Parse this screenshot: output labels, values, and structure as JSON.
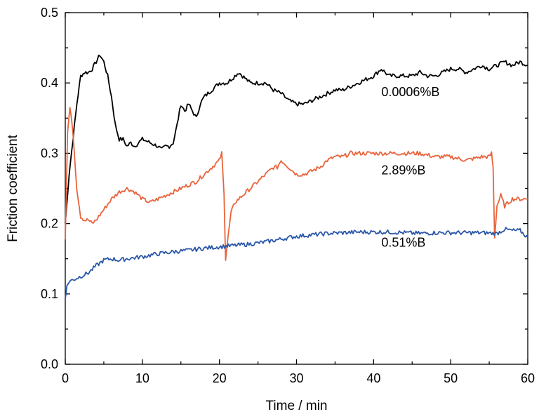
{
  "chart_data": {
    "type": "line",
    "xlabel": "Time / min",
    "ylabel": "Friction coefficient",
    "xlim": [
      0,
      60
    ],
    "ylim": [
      0,
      0.5
    ],
    "xticks": [
      0,
      10,
      20,
      30,
      40,
      50,
      60
    ],
    "yticks": [
      0.0,
      0.1,
      0.2,
      0.3,
      0.4,
      0.5
    ],
    "xtick_labels": [
      "0",
      "10",
      "20",
      "30",
      "40",
      "50",
      "60"
    ],
    "ytick_labels": [
      "0.0",
      "0.1",
      "0.2",
      "0.3",
      "0.4",
      "0.5"
    ],
    "grid": false,
    "legend": "none",
    "series": [
      {
        "name": "0.0006%B",
        "color": "#000000",
        "label_at": [
          41,
          0.381
        ],
        "x": [
          0,
          0.5,
          1,
          1.5,
          2,
          2.5,
          3,
          3.5,
          4,
          4.5,
          5,
          5.5,
          6,
          6.5,
          7,
          7.5,
          8,
          8.5,
          9,
          10,
          11,
          12,
          12.5,
          13,
          13.5,
          14,
          14.5,
          15,
          15.5,
          16,
          16.5,
          17,
          17.5,
          18,
          19,
          20,
          21,
          22,
          22.5,
          23,
          24,
          25,
          26,
          27,
          28,
          29,
          30,
          31,
          32,
          33,
          34,
          35,
          36,
          37,
          38,
          39,
          40,
          41,
          42,
          43,
          44,
          45,
          46,
          47,
          48,
          49,
          50,
          51,
          52,
          53,
          54,
          55,
          56,
          57,
          58,
          59,
          60
        ],
        "y": [
          0.2,
          0.27,
          0.32,
          0.37,
          0.41,
          0.415,
          0.415,
          0.42,
          0.43,
          0.44,
          0.43,
          0.41,
          0.38,
          0.34,
          0.32,
          0.32,
          0.31,
          0.315,
          0.31,
          0.32,
          0.315,
          0.31,
          0.305,
          0.31,
          0.31,
          0.315,
          0.34,
          0.37,
          0.36,
          0.37,
          0.36,
          0.35,
          0.37,
          0.38,
          0.39,
          0.4,
          0.4,
          0.41,
          0.415,
          0.41,
          0.4,
          0.4,
          0.4,
          0.39,
          0.385,
          0.375,
          0.37,
          0.37,
          0.375,
          0.38,
          0.385,
          0.39,
          0.39,
          0.395,
          0.4,
          0.405,
          0.41,
          0.42,
          0.41,
          0.41,
          0.41,
          0.41,
          0.415,
          0.41,
          0.41,
          0.415,
          0.42,
          0.42,
          0.415,
          0.42,
          0.425,
          0.42,
          0.425,
          0.43,
          0.425,
          0.43,
          0.425
        ]
      },
      {
        "name": "2.89%B",
        "color": "#e8643c",
        "label_at": [
          41,
          0.27
        ],
        "x": [
          0,
          0.3,
          0.6,
          1,
          1.5,
          2,
          2.5,
          3,
          3.5,
          4,
          5,
          6,
          7,
          8,
          9,
          10,
          11,
          12,
          13,
          14,
          15,
          16,
          17,
          18,
          19,
          20,
          20.3,
          20.6,
          20.8,
          21,
          21.5,
          22,
          23,
          24,
          25,
          26,
          27,
          27.5,
          28,
          28.5,
          29,
          30,
          31,
          32,
          33,
          34,
          35,
          36,
          37,
          38,
          39,
          40,
          42,
          44,
          46,
          48,
          50,
          52,
          54,
          55,
          55.3,
          55.5,
          55.7,
          56,
          56.5,
          57,
          58,
          59,
          60
        ],
        "y": [
          0.18,
          0.33,
          0.365,
          0.33,
          0.25,
          0.21,
          0.205,
          0.205,
          0.2,
          0.205,
          0.22,
          0.235,
          0.245,
          0.25,
          0.245,
          0.235,
          0.23,
          0.235,
          0.24,
          0.245,
          0.25,
          0.255,
          0.26,
          0.27,
          0.28,
          0.29,
          0.3,
          0.24,
          0.15,
          0.17,
          0.215,
          0.23,
          0.24,
          0.25,
          0.26,
          0.27,
          0.28,
          0.28,
          0.29,
          0.285,
          0.28,
          0.27,
          0.27,
          0.275,
          0.28,
          0.29,
          0.295,
          0.295,
          0.3,
          0.3,
          0.3,
          0.3,
          0.3,
          0.3,
          0.3,
          0.295,
          0.295,
          0.29,
          0.295,
          0.295,
          0.3,
          0.28,
          0.18,
          0.225,
          0.24,
          0.225,
          0.235,
          0.235,
          0.235
        ]
      },
      {
        "name": "0.51%B",
        "color": "#2a57a8",
        "label_at": [
          41,
          0.167
        ],
        "x": [
          0,
          0.2,
          0.5,
          1,
          2,
          3,
          4,
          5,
          6,
          7,
          8,
          10,
          12,
          14,
          16,
          18,
          20,
          22,
          24,
          26,
          28,
          30,
          32,
          34,
          36,
          38,
          40,
          42,
          44,
          46,
          48,
          50,
          52,
          54,
          56,
          57,
          58,
          59,
          60
        ],
        "y": [
          0.095,
          0.11,
          0.118,
          0.12,
          0.125,
          0.13,
          0.14,
          0.148,
          0.15,
          0.148,
          0.15,
          0.153,
          0.157,
          0.16,
          0.162,
          0.165,
          0.167,
          0.169,
          0.171,
          0.174,
          0.178,
          0.182,
          0.184,
          0.186,
          0.187,
          0.188,
          0.188,
          0.188,
          0.187,
          0.186,
          0.187,
          0.187,
          0.187,
          0.187,
          0.186,
          0.192,
          0.19,
          0.19,
          0.18
        ]
      }
    ]
  }
}
